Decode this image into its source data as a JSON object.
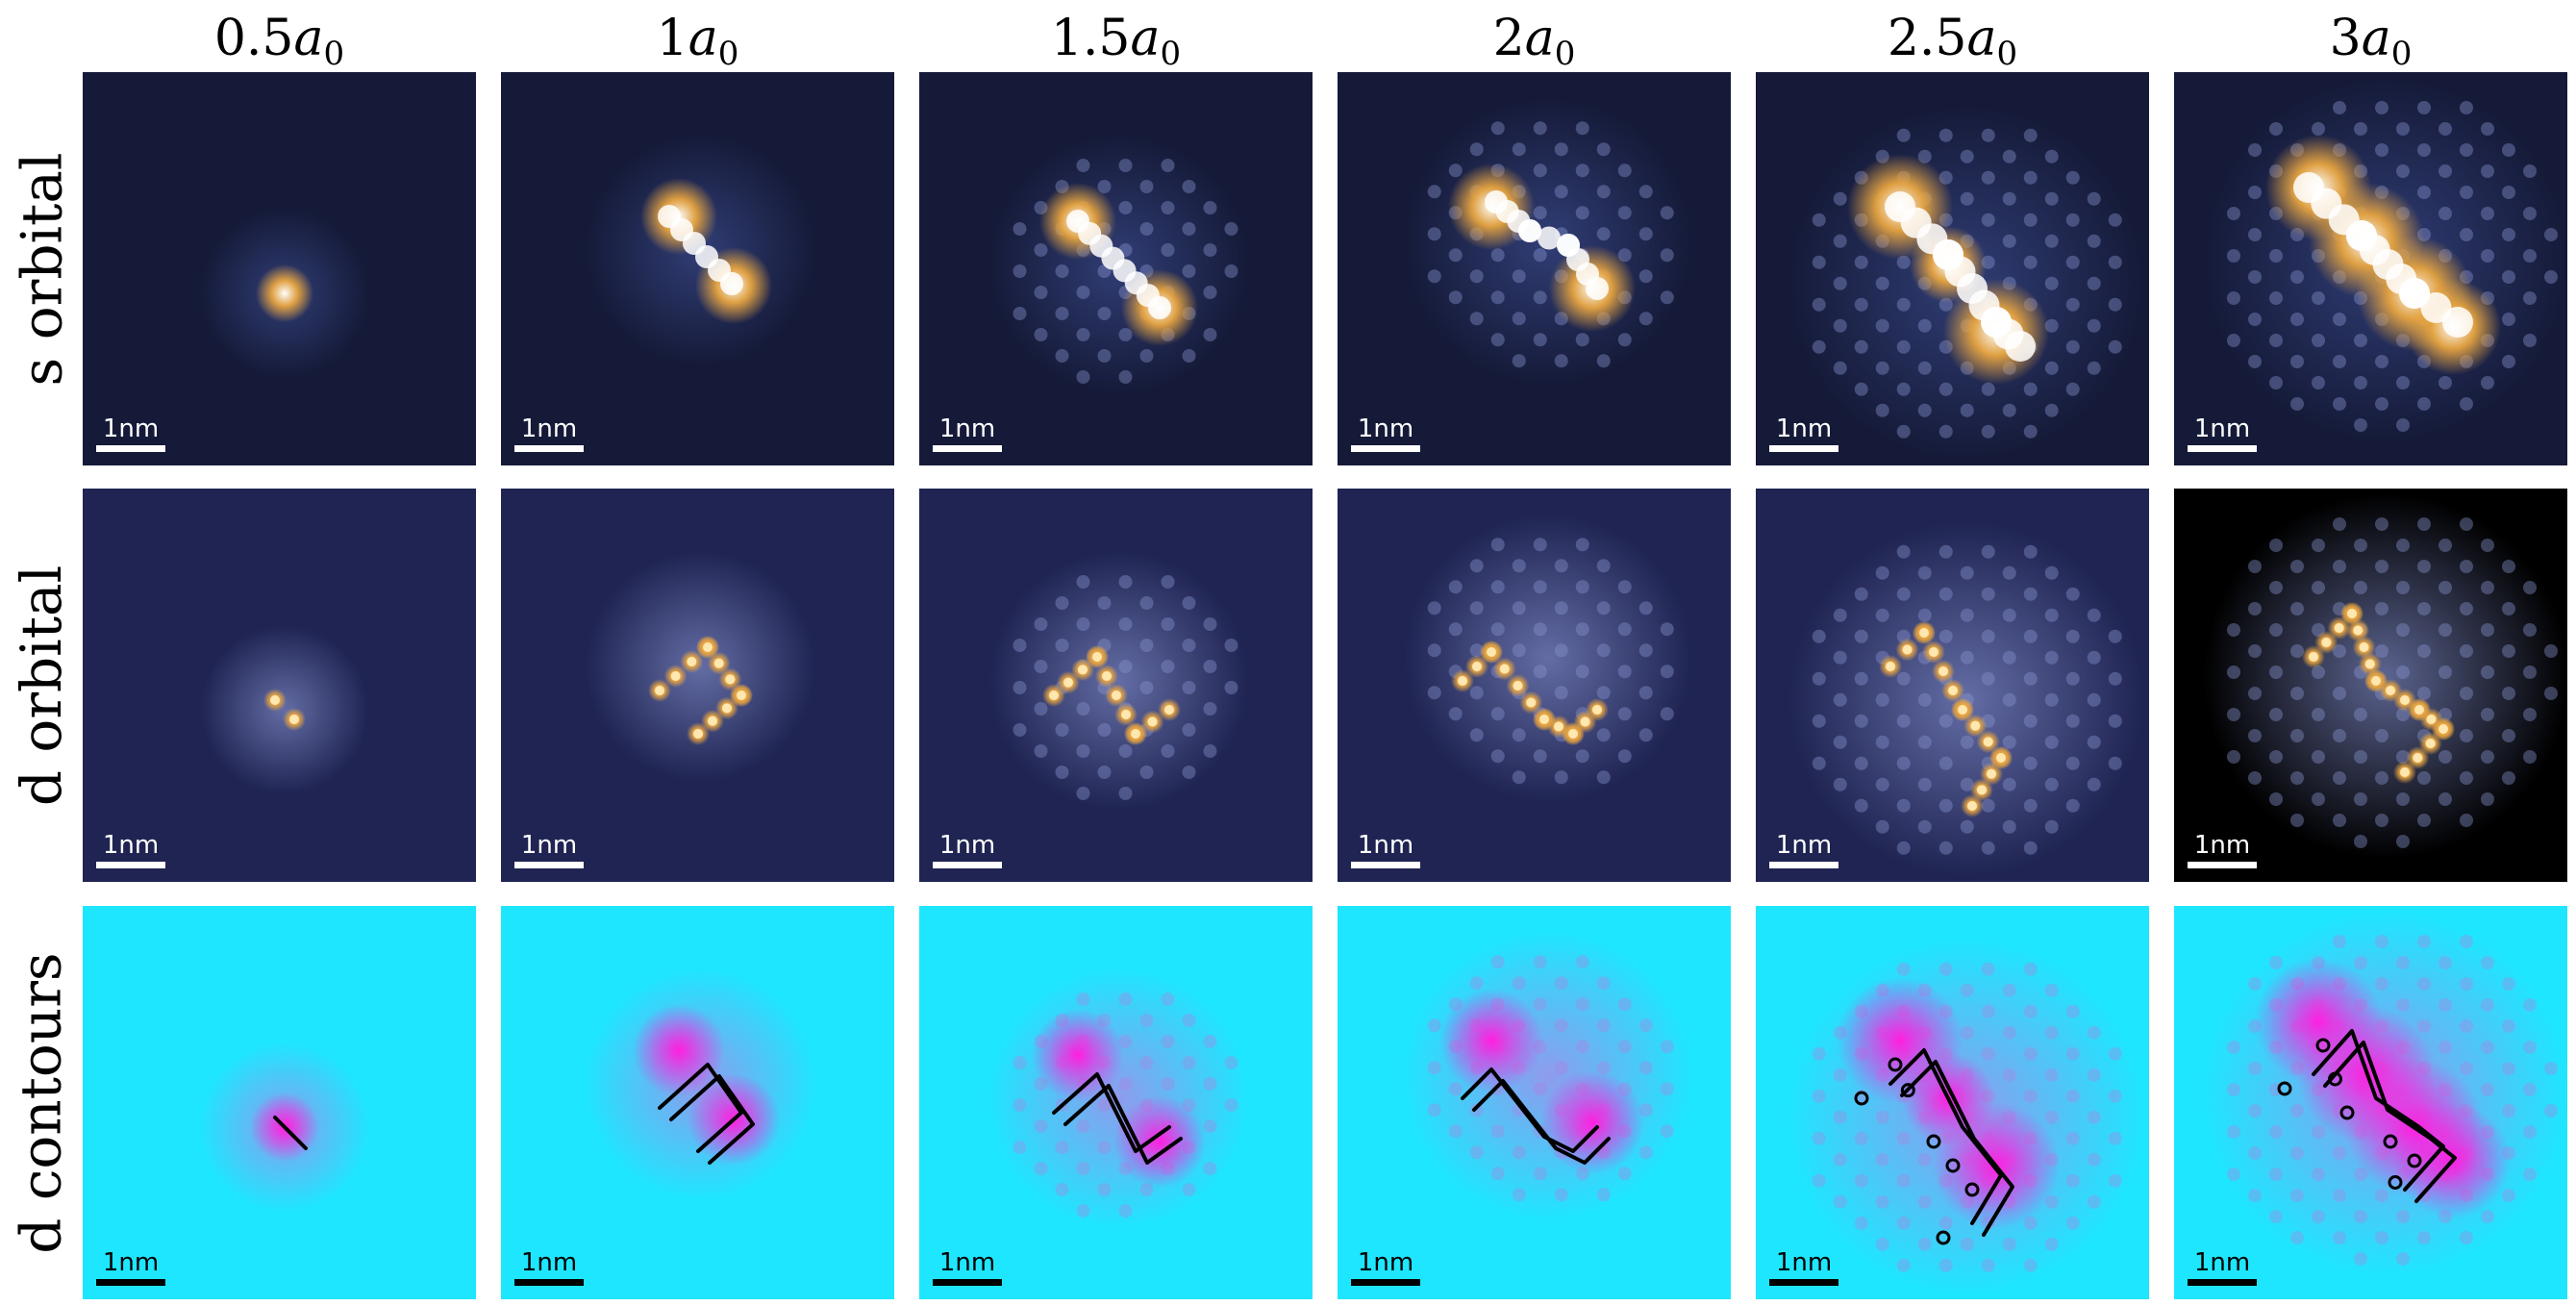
{
  "columns": [
    {
      "coef": "0.5",
      "sym": "a",
      "sub": "0"
    },
    {
      "coef": "1",
      "sym": "a",
      "sub": "0"
    },
    {
      "coef": "1.5",
      "sym": "a",
      "sub": "0"
    },
    {
      "coef": "2",
      "sym": "a",
      "sub": "0"
    },
    {
      "coef": "2.5",
      "sym": "a",
      "sub": "0"
    },
    {
      "coef": "3",
      "sym": "a",
      "sub": "0"
    }
  ],
  "rows": [
    {
      "label": "s orbital",
      "style": "orbital"
    },
    {
      "label": "d orbital",
      "style": "orbital"
    },
    {
      "label": "d contours",
      "style": "contour"
    }
  ],
  "scale_bar_label": "1nm",
  "colors": {
    "orbital_background": "#151a38",
    "orbital_glow": "#e8a540",
    "orbital_peak": "#ffffff",
    "contour_background": "#1ee6ff",
    "contour_density": "#ff1fe0",
    "contour_line": "#000000"
  }
}
